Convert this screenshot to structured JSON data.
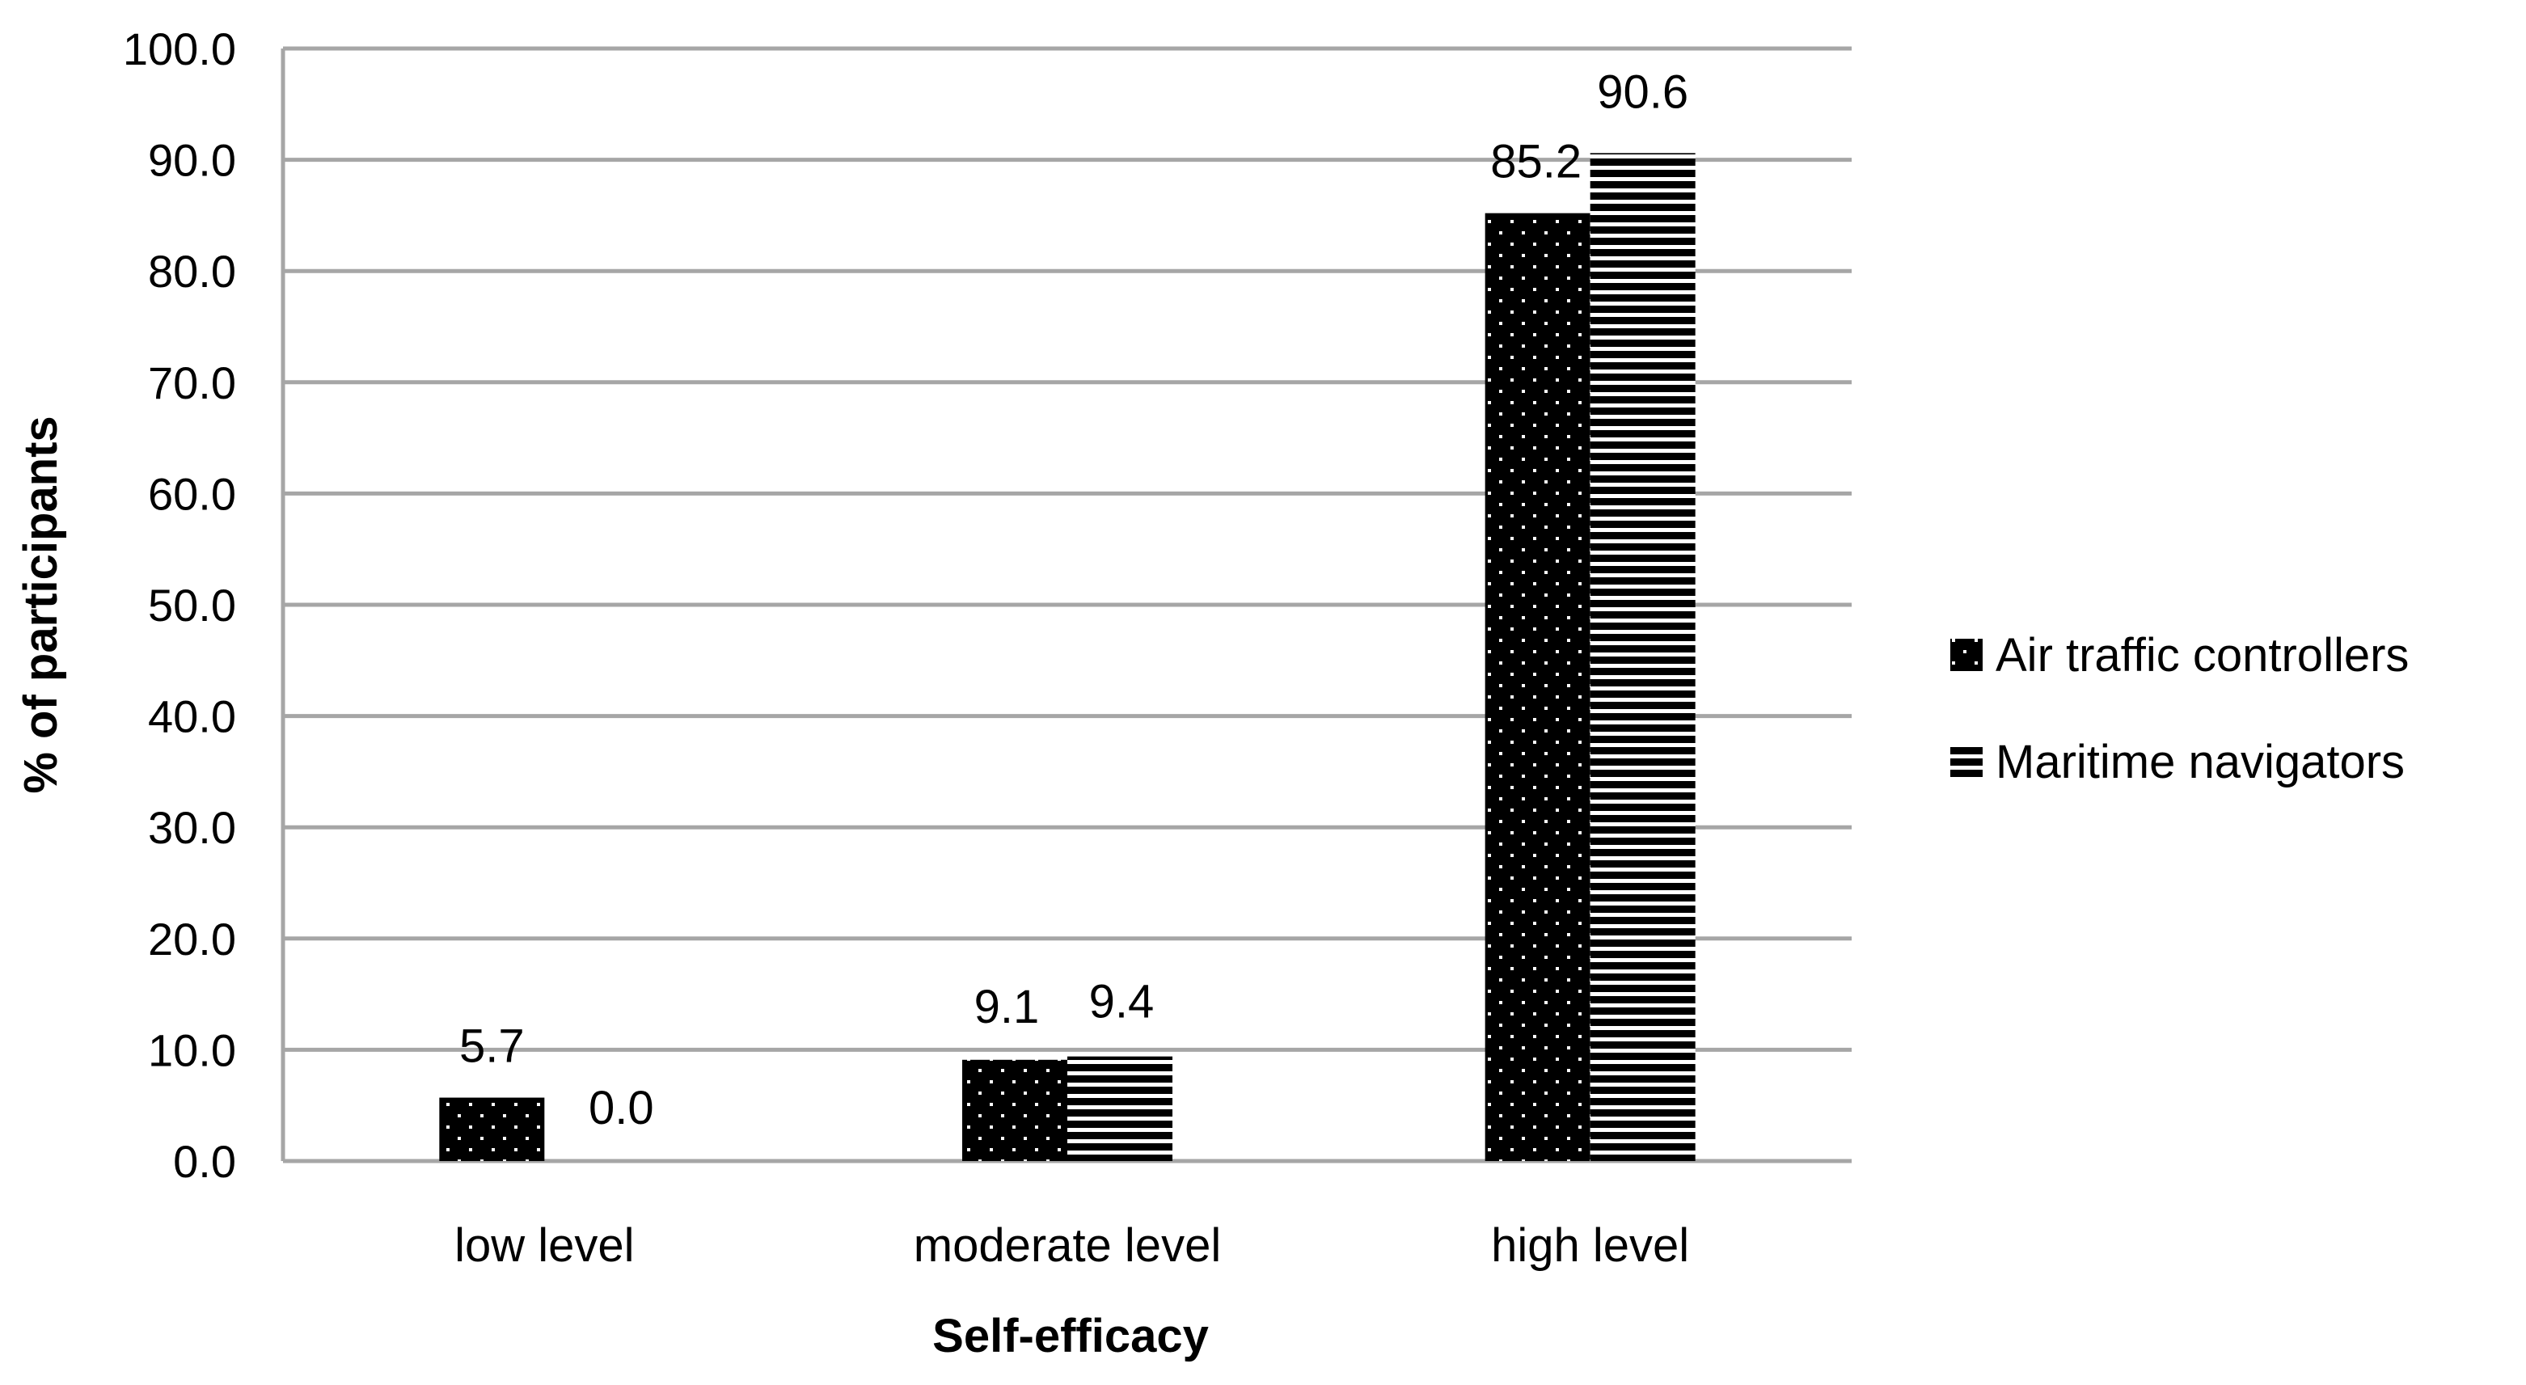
{
  "chart_data": {
    "type": "bar",
    "title": "",
    "xlabel": "Self-efficacy",
    "ylabel": "% of participants",
    "categories": [
      "low level",
      "moderate level",
      "high level"
    ],
    "series": [
      {
        "name": "Air traffic controllers",
        "values": [
          5.7,
          9.1,
          85.2
        ],
        "value_labels": [
          "5.7",
          "9.1",
          "85.2"
        ],
        "pattern": "dotted-black",
        "color": "#000000"
      },
      {
        "name": "Maritime navigators",
        "values": [
          0.0,
          9.4,
          90.6
        ],
        "value_labels": [
          "0.0",
          "9.4",
          "90.6"
        ],
        "pattern": "horizontal-stripes",
        "color": "#000000"
      }
    ],
    "ylim": [
      0,
      100
    ],
    "yticks": [
      0,
      10,
      20,
      30,
      40,
      50,
      60,
      70,
      80,
      90,
      100
    ],
    "ytick_labels": [
      "0.0",
      "10.0",
      "20.0",
      "30.0",
      "40.0",
      "50.0",
      "60.0",
      "70.0",
      "80.0",
      "90.0",
      "100.0"
    ],
    "grid": true,
    "grid_color": "#a6a6a6",
    "legend_position": "right"
  }
}
